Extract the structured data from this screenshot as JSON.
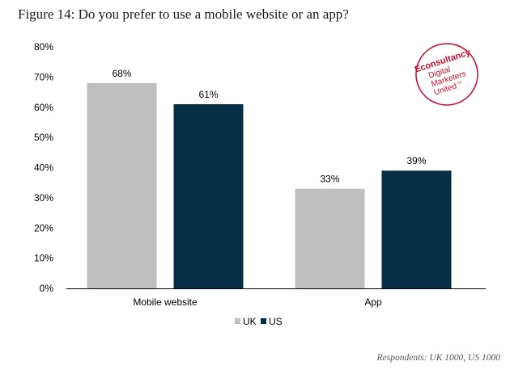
{
  "title": "Figure 14: Do you prefer to use a mobile website or an app?",
  "footer": "Respondents: UK 1000, US 1000",
  "logo": {
    "brand": "Econsultancy",
    "lines": [
      "Digital",
      "Marketers",
      "United"
    ],
    "tm": "TM",
    "color": "#c8102e"
  },
  "chart_data": {
    "type": "bar",
    "title": "Do you prefer to use a mobile website or an app?",
    "categories": [
      "Mobile website",
      "App"
    ],
    "series": [
      {
        "name": "UK",
        "values": [
          68,
          33
        ],
        "labels": [
          "68%",
          "33%"
        ],
        "color": "#bfbfbf"
      },
      {
        "name": "US",
        "values": [
          61,
          39
        ],
        "labels": [
          "61%",
          "39%"
        ],
        "color": "#062f45"
      }
    ],
    "yticks": [
      "0%",
      "10%",
      "20%",
      "30%",
      "40%",
      "50%",
      "60%",
      "70%",
      "80%"
    ],
    "ylim": [
      0,
      80
    ],
    "xlabel": "",
    "ylabel": "",
    "grid": false,
    "legend": "bottom-center"
  }
}
